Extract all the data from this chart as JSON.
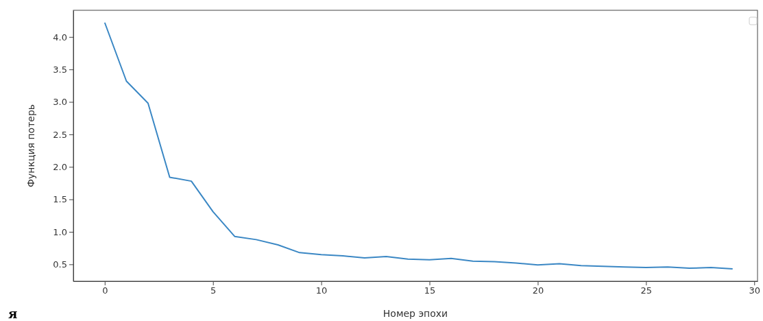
{
  "chart_data": {
    "type": "line",
    "xlabel": "Номер эпохи",
    "ylabel": "Функция потерь",
    "x": [
      0,
      1,
      2,
      3,
      4,
      5,
      6,
      7,
      8,
      9,
      10,
      11,
      12,
      13,
      14,
      15,
      16,
      17,
      18,
      19,
      20,
      21,
      22,
      23,
      24,
      25,
      26,
      27,
      28,
      29
    ],
    "series": [
      {
        "color": "#3a87c4",
        "values": [
          4.22,
          3.32,
          2.98,
          1.84,
          1.78,
          1.31,
          0.93,
          0.88,
          0.8,
          0.68,
          0.65,
          0.63,
          0.6,
          0.62,
          0.58,
          0.57,
          0.59,
          0.55,
          0.54,
          0.52,
          0.49,
          0.51,
          0.48,
          0.47,
          0.46,
          0.45,
          0.46,
          0.44,
          0.45,
          0.43
        ]
      }
    ],
    "xlim": [
      -1.45,
      30.15
    ],
    "ylim": [
      0.24,
      4.41
    ],
    "xticks": [
      0,
      5,
      10,
      15,
      20,
      25,
      30
    ],
    "yticks": [
      {
        "value": 0.5,
        "label": "0.5"
      },
      {
        "value": 1,
        "label": "1.0"
      },
      {
        "value": 1.5,
        "label": "1.5"
      },
      {
        "value": 2,
        "label": "2.0"
      },
      {
        "value": 2.5,
        "label": "2.5"
      },
      {
        "value": 3,
        "label": "3.0"
      },
      {
        "value": 3.5,
        "label": "3.5"
      },
      {
        "value": 4,
        "label": "4.0"
      }
    ],
    "grid": false,
    "marker": "none",
    "line_style": "solid",
    "annotations": [
      "я"
    ]
  }
}
